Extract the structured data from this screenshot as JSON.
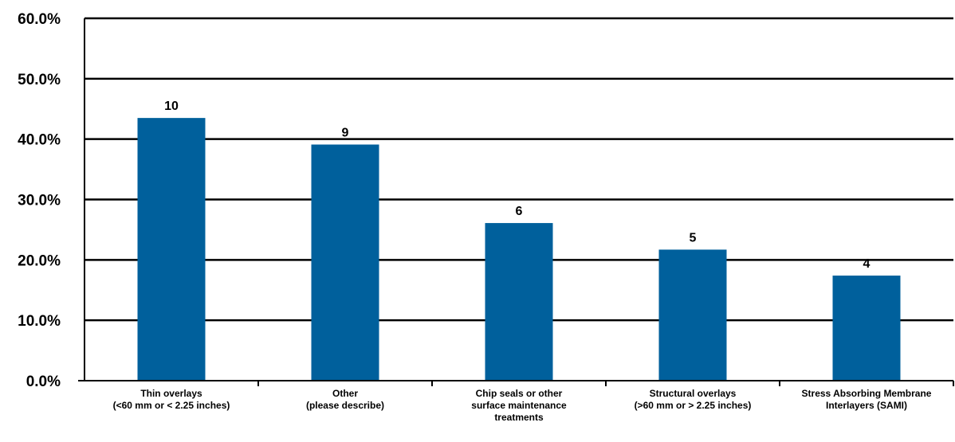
{
  "chart_data": {
    "type": "bar",
    "categories": [
      [
        "Thin overlays",
        "(<60 mm or < 2.25 inches)"
      ],
      [
        "Other",
        "(please describe)"
      ],
      [
        "Chip seals or other",
        "surface maintenance",
        "treatments"
      ],
      [
        "Structural overlays",
        "(>60 mm or > 2.25 inches)"
      ],
      [
        "Stress Absorbing Membrane",
        "Interlayers (SAMI)"
      ]
    ],
    "values": [
      43.5,
      39.1,
      26.1,
      21.7,
      17.4
    ],
    "data_labels": [
      "10",
      "9",
      "6",
      "5",
      "4"
    ],
    "yticks": [
      "0.0%",
      "10.0%",
      "20.0%",
      "30.0%",
      "40.0%",
      "50.0%",
      "60.0%"
    ],
    "ylim": [
      0,
      60
    ],
    "grid": true,
    "legend": "none",
    "bar_color": "#00609C",
    "title": "",
    "xlabel": "",
    "ylabel": ""
  }
}
